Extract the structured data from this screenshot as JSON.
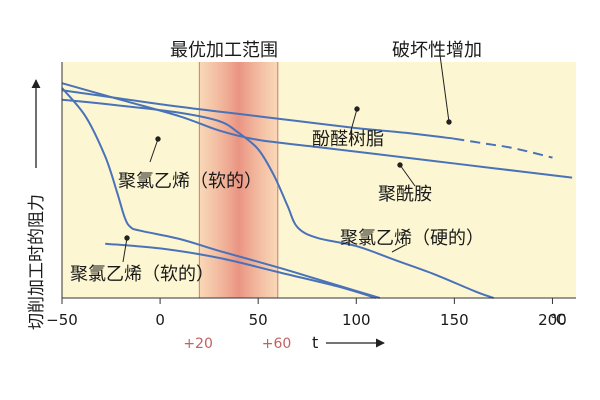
{
  "chart_data": {
    "type": "line",
    "title_top": "最优加工范围",
    "annotation_top_right": "破坏性增加",
    "ylabel": "切削加工时的阻力",
    "xlabel": "t",
    "x_unit": "℃",
    "xlim": [
      -50,
      212
    ],
    "ylim": [
      0,
      100
    ],
    "x_ticks": [
      -50,
      0,
      50,
      100,
      150,
      200
    ],
    "x_tick_labels": [
      "−50",
      "0",
      "50",
      "100",
      "150",
      "200"
    ],
    "optimal_range": [
      20,
      60
    ],
    "optimal_range_labels": [
      "+20",
      "+60"
    ],
    "series": [
      {
        "name": "酚醛树脂",
        "x": [
          -50,
          -20,
          10,
          40,
          70,
          100,
          125,
          150
        ],
        "y": [
          88,
          84.5,
          81,
          78,
          75,
          72,
          70,
          67.5
        ],
        "dashed": {
          "x": [
            150,
            165,
            180,
            200
          ],
          "y": [
            67.5,
            65.5,
            63.5,
            59.5
          ]
        }
      },
      {
        "name": "聚酰胺",
        "x": [
          -50,
          -20,
          10,
          30,
          50,
          80,
          110,
          140,
          170,
          210
        ],
        "y": [
          91,
          84,
          77,
          71,
          67,
          64,
          61,
          58,
          55,
          51
        ]
      },
      {
        "name": "聚氯乙烯（硬的）",
        "x": [
          -50,
          -20,
          10,
          30,
          40,
          50,
          58,
          65,
          70,
          80,
          100,
          120,
          140,
          160,
          170
        ],
        "y": [
          84,
          81.5,
          78.5,
          75,
          70,
          63,
          52,
          39,
          30,
          25.5,
          22,
          16,
          10,
          3,
          0
        ]
      },
      {
        "name": "聚氯乙烯（软的）",
        "x": [
          -50,
          -38,
          -28,
          -22,
          -18,
          -15,
          -10,
          10,
          30,
          60,
          80,
          100,
          112
        ],
        "y": [
          89,
          77,
          60,
          45,
          34,
          30,
          28.5,
          25,
          20,
          13,
          8,
          3,
          0
        ]
      }
    ],
    "annotation_angled": "聚氯乙烯（软的）",
    "extra_curve": {
      "x": [
        -28,
        0,
        30,
        60,
        90,
        110
      ],
      "y": [
        23,
        21,
        17,
        11,
        5,
        0
      ]
    }
  }
}
